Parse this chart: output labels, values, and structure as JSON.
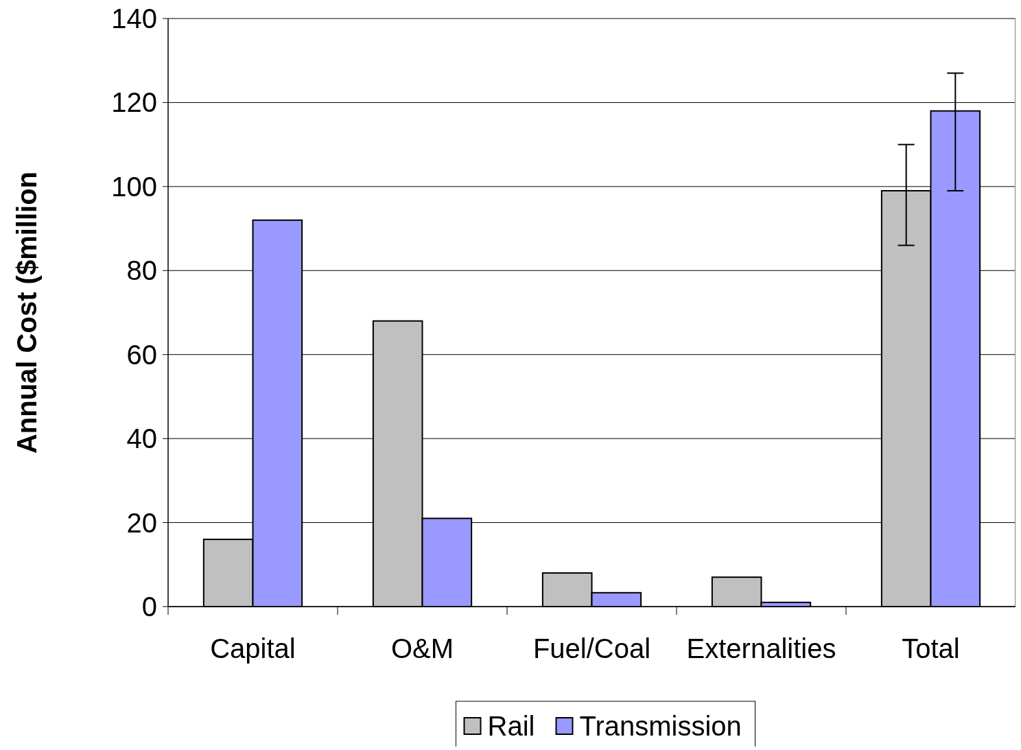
{
  "chart_data": {
    "type": "bar",
    "ylabel": "Annual Cost ($million",
    "categories": [
      "Capital",
      "O&M",
      "Fuel/Coal",
      "Externalities",
      "Total"
    ],
    "series": [
      {
        "name": "Rail",
        "color": "#c0c0c0",
        "values": [
          16,
          68,
          8,
          7,
          99
        ],
        "errors": [
          null,
          null,
          null,
          null,
          [
            86,
            110
          ]
        ]
      },
      {
        "name": "Transmission",
        "color": "#9999ff",
        "values": [
          92,
          21,
          3.3,
          1,
          118
        ],
        "errors": [
          null,
          null,
          null,
          null,
          [
            99,
            127
          ]
        ]
      }
    ],
    "ylim": [
      0,
      140
    ],
    "yticks": [
      0,
      20,
      40,
      60,
      80,
      100,
      120,
      140
    ],
    "grid": "y",
    "legend": "bottom"
  }
}
